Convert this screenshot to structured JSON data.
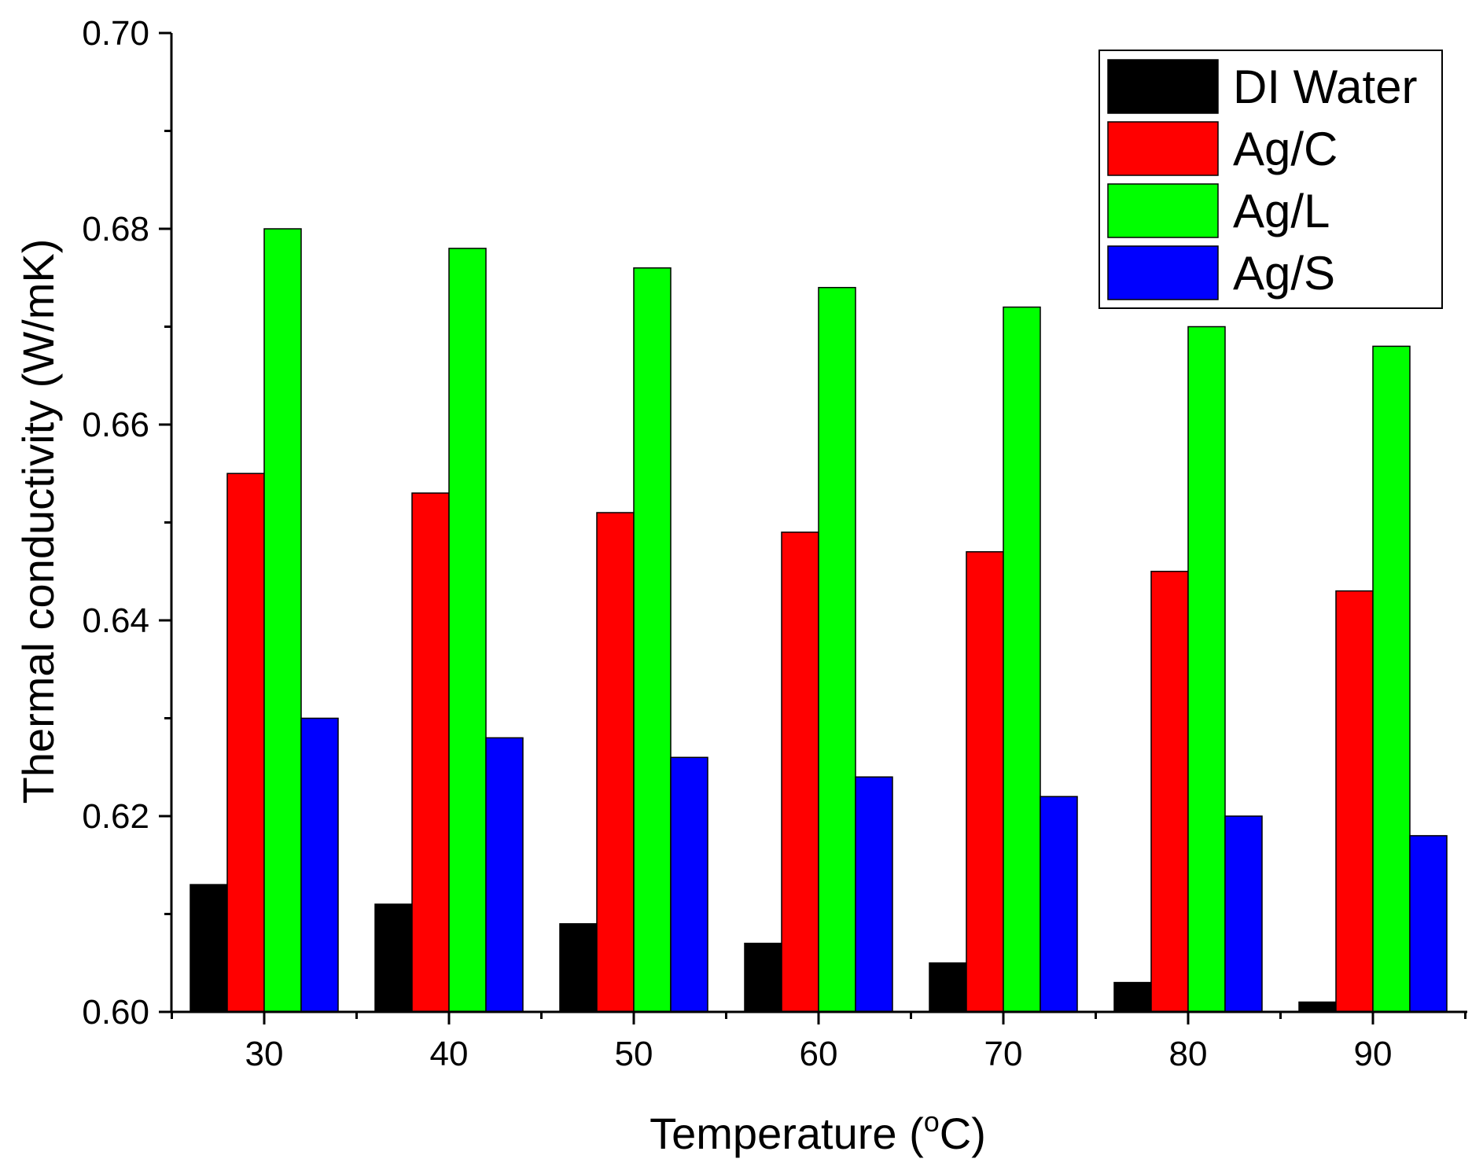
{
  "chart_data": {
    "type": "bar",
    "title": "",
    "xlabel": "Temperature (",
    "xlabel_sup": "o",
    "xlabel_suffix": "C)",
    "ylabel": "Thermal conductivity (W/mK)",
    "ylim": [
      0.6,
      0.7
    ],
    "yticks": [
      "0.60",
      "0.62",
      "0.64",
      "0.66",
      "0.68",
      "0.70"
    ],
    "categories": [
      "30",
      "40",
      "50",
      "60",
      "70",
      "80",
      "90"
    ],
    "series": [
      {
        "name": "DI Water",
        "color": "#000000",
        "values": [
          0.613,
          0.611,
          0.609,
          0.607,
          0.605,
          0.603,
          0.601
        ]
      },
      {
        "name": "Ag/C",
        "color": "#ff0000",
        "values": [
          0.655,
          0.653,
          0.651,
          0.649,
          0.647,
          0.645,
          0.643
        ]
      },
      {
        "name": "Ag/L",
        "color": "#00ff00",
        "values": [
          0.68,
          0.678,
          0.676,
          0.674,
          0.672,
          0.67,
          0.668
        ]
      },
      {
        "name": "Ag/S",
        "color": "#0000ff",
        "values": [
          0.63,
          0.628,
          0.626,
          0.624,
          0.622,
          0.62,
          0.618
        ]
      }
    ],
    "legend_position": "top-right",
    "grid": false
  }
}
